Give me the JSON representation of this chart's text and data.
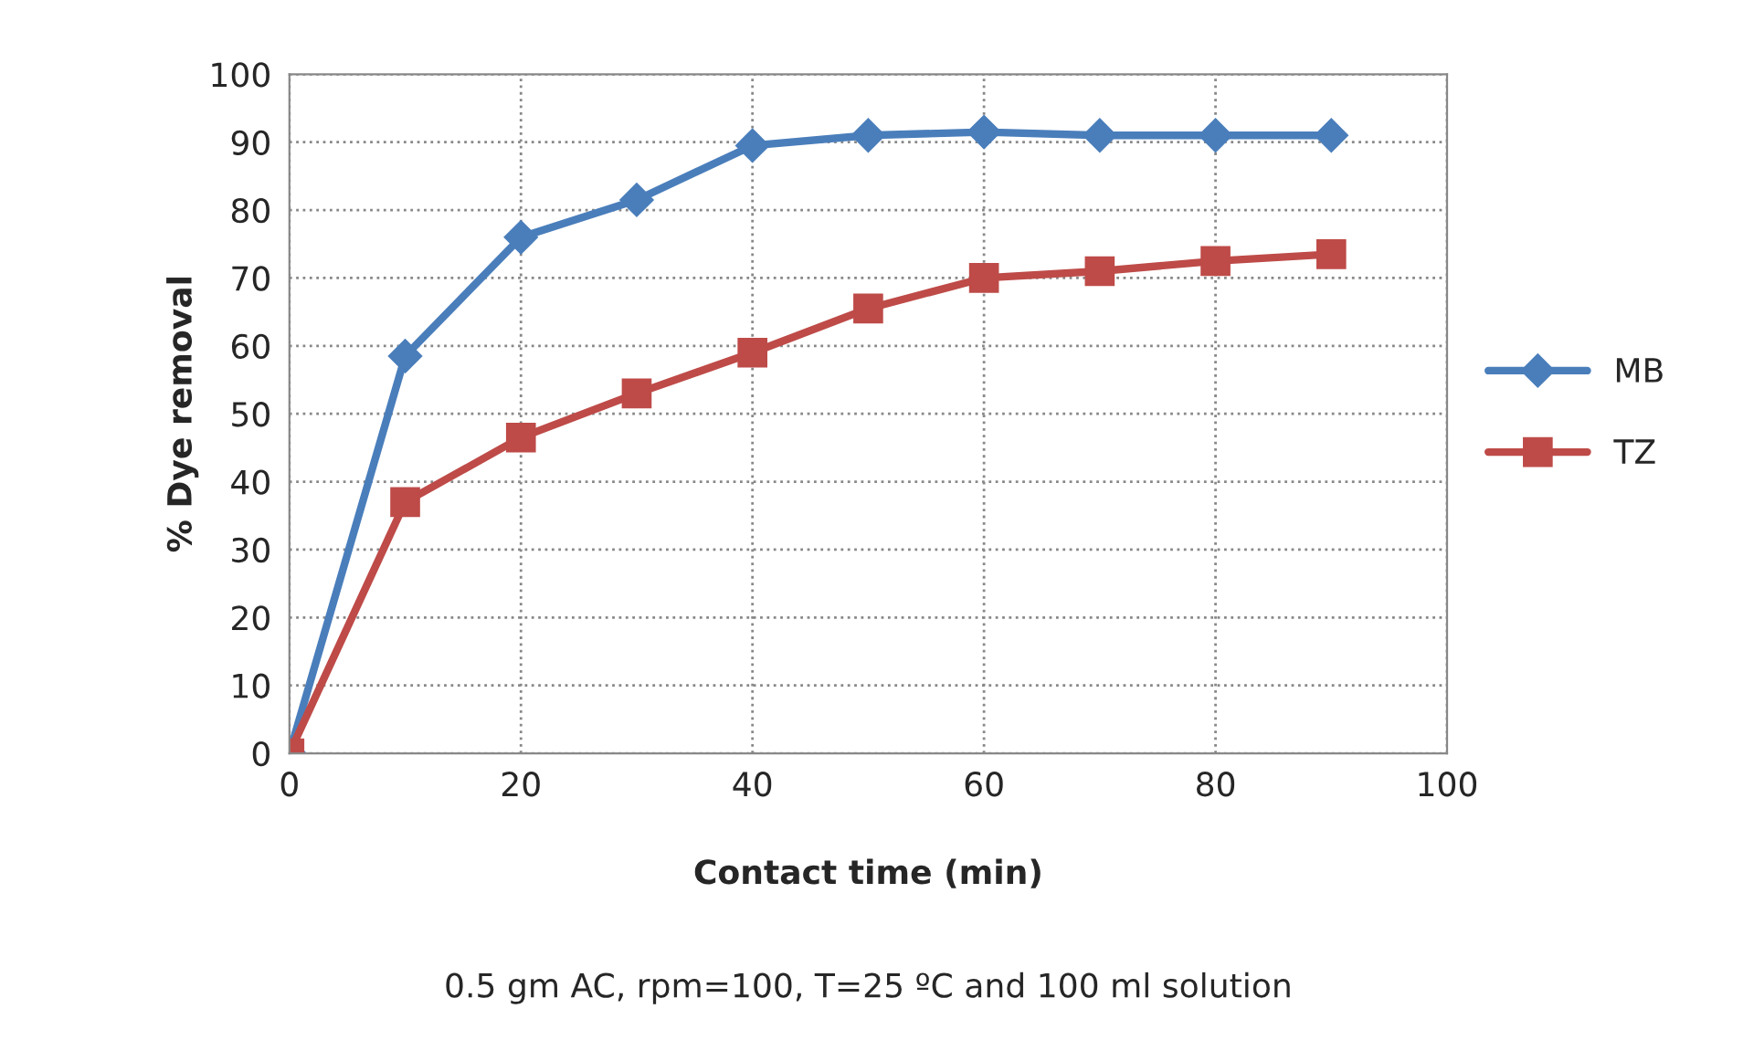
{
  "chart_data": {
    "type": "line",
    "xlabel": "Contact time (min)",
    "ylabel": "% Dye removal",
    "annotations": [
      "0.5 gm AC, rpm=100, T=25 ºC and 100 ml solution"
    ],
    "x": [
      0,
      10,
      20,
      30,
      40,
      50,
      60,
      70,
      80,
      90
    ],
    "series": [
      {
        "name": "MB",
        "color": "#4a7ebb",
        "marker": "diamond",
        "values": [
          0,
          58.5,
          76,
          81.5,
          89.5,
          91,
          91.5,
          91,
          91,
          91
        ]
      },
      {
        "name": "TZ",
        "color": "#be4b48",
        "marker": "square",
        "values": [
          0,
          37,
          46.5,
          53,
          59,
          65.5,
          70,
          71,
          72.5,
          73.5
        ]
      }
    ],
    "xlim": [
      0,
      100
    ],
    "xticks": [
      0,
      20,
      40,
      60,
      80,
      100
    ],
    "ylim": [
      0,
      100
    ],
    "yticks": [
      0,
      10,
      20,
      30,
      40,
      50,
      60,
      70,
      80,
      90,
      100
    ],
    "grid": true,
    "legend": "right",
    "line_style": "solid"
  }
}
